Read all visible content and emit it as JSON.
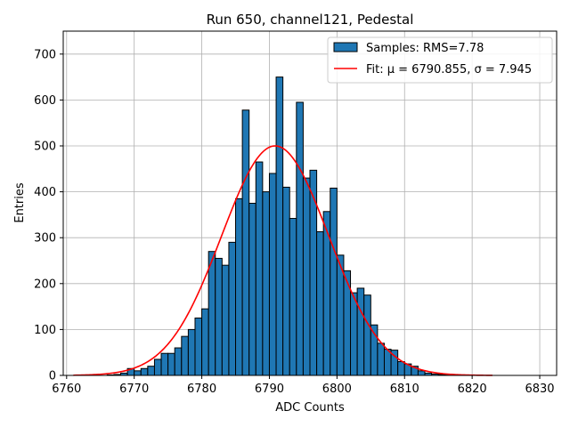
{
  "chart_data": {
    "type": "bar",
    "title": "Run 650, channel121, Pedestal",
    "xlabel": "ADC Counts",
    "ylabel": "Entries",
    "xlim": [
      6759.5,
      6832.5
    ],
    "ylim": [
      0,
      750
    ],
    "xticks": [
      6760,
      6770,
      6780,
      6790,
      6800,
      6810,
      6820,
      6830
    ],
    "yticks": [
      0,
      100,
      200,
      300,
      400,
      500,
      600,
      700
    ],
    "grid": true,
    "legend_position": "top-right",
    "bin_width": 1,
    "bin_start": 6761,
    "values": [
      0,
      0,
      0,
      0,
      0,
      1,
      2,
      5,
      15,
      10,
      15,
      20,
      35,
      48,
      48,
      60,
      85,
      100,
      125,
      145,
      270,
      255,
      240,
      290,
      385,
      578,
      375,
      465,
      400,
      440,
      650,
      410,
      342,
      595,
      430,
      447,
      313,
      357,
      408,
      262,
      228,
      180,
      190,
      175,
      110,
      70,
      57,
      55,
      30,
      25,
      20,
      10,
      5,
      3,
      2,
      1,
      0,
      0,
      0,
      0,
      0,
      0
    ],
    "series": [
      {
        "name": "Samples: RMS=7.78",
        "kind": "histogram",
        "color": "#1f77b4"
      },
      {
        "name": "Fit: μ = 6790.855, σ = 7.945",
        "kind": "gaussian",
        "mu": 6790.855,
        "sigma": 7.945,
        "amplitude": 500,
        "x_range": [
          6761,
          6823
        ],
        "color": "#ff0000"
      }
    ]
  }
}
